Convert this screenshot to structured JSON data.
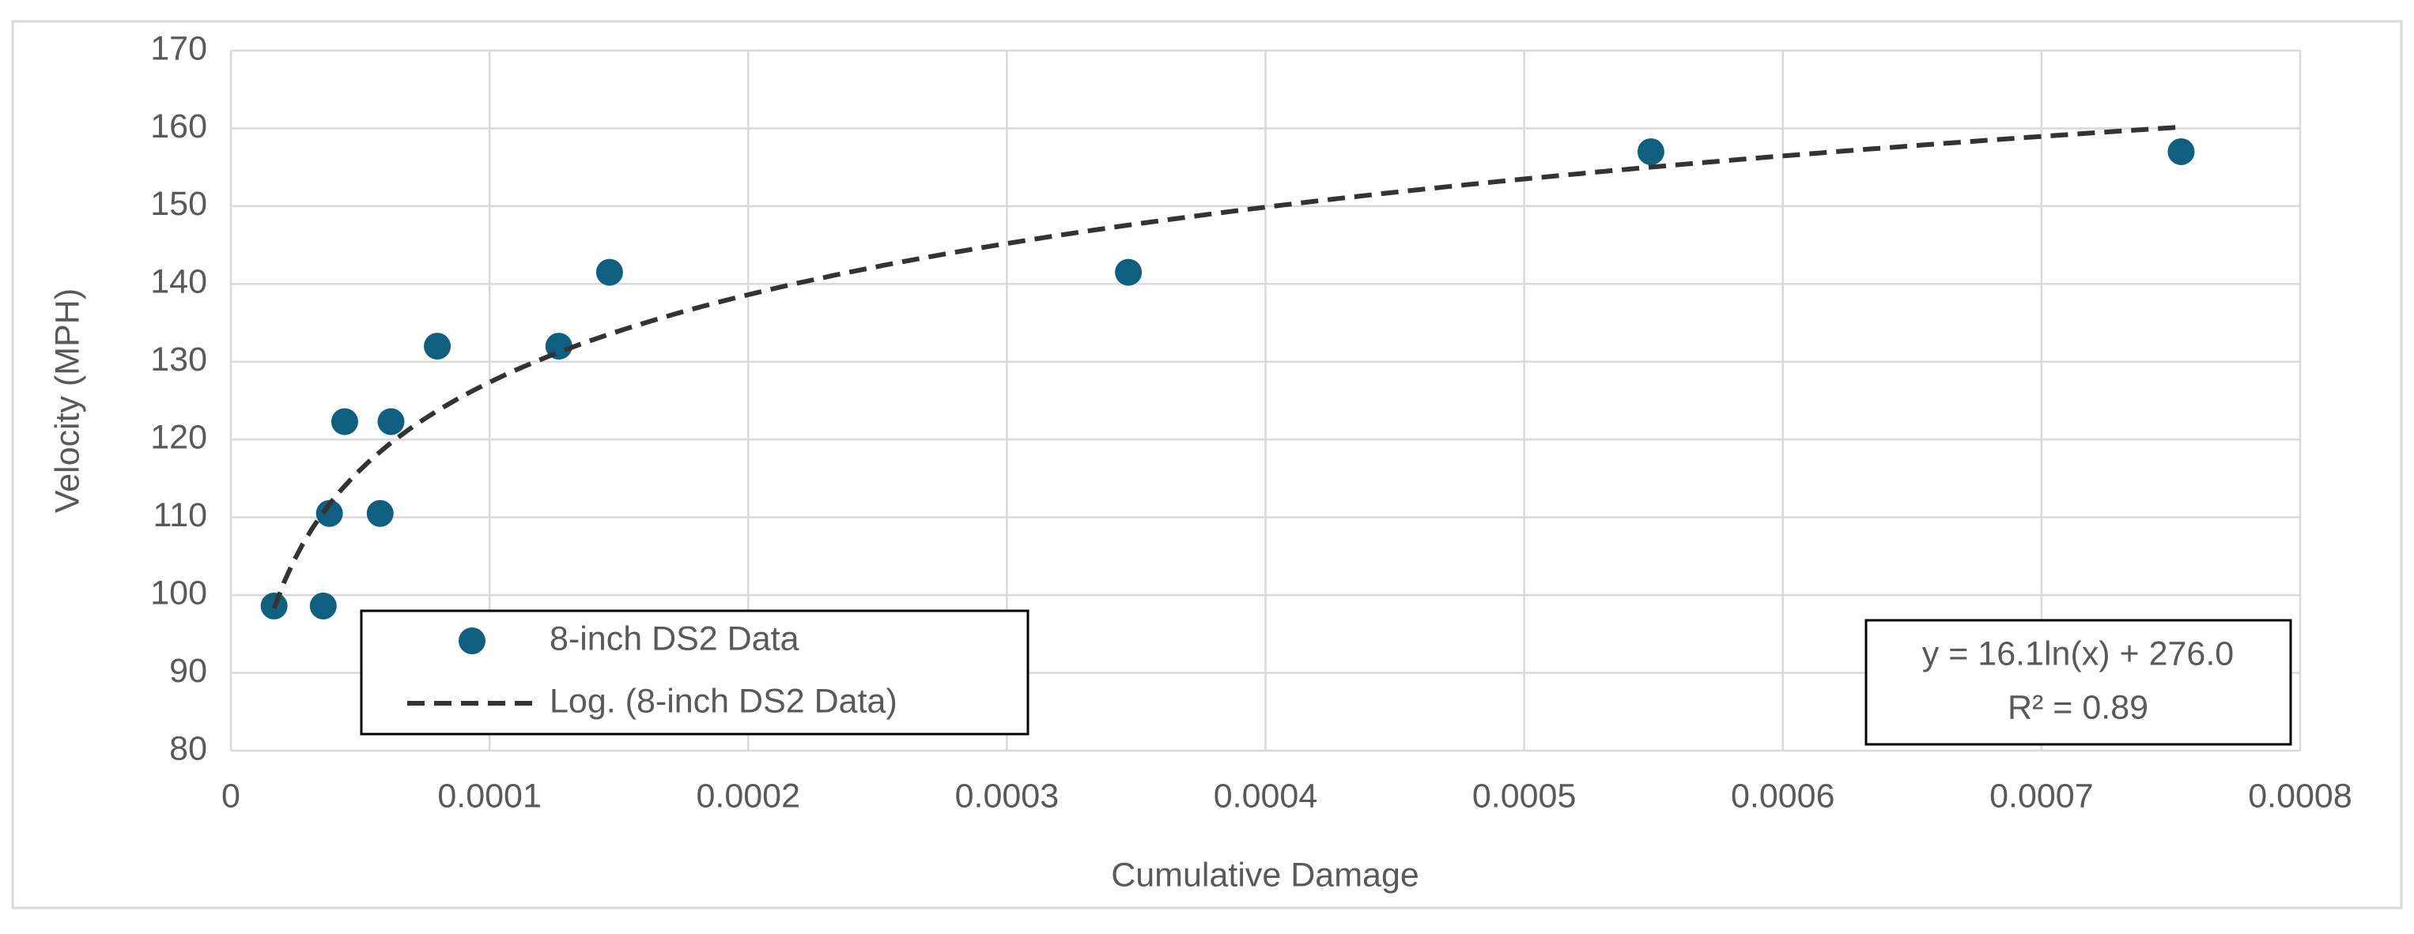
{
  "chart_data": {
    "type": "scatter",
    "xlabel": "Cumulative Damage",
    "ylabel": "Velocity (MPH)",
    "x": [
      1.67e-05,
      3.57e-05,
      3.81e-05,
      4.4e-05,
      5.77e-05,
      6.19e-05,
      7.98e-05,
      0.0001268,
      0.0001464,
      0.000347,
      0.000549,
      0.000754
    ],
    "series": [
      {
        "name": "8-inch DS2 Data",
        "color": "#0f5f80",
        "values": [
          98.6,
          98.6,
          110.5,
          122.3,
          110.5,
          122.3,
          132,
          132,
          141.5,
          141.5,
          157,
          157
        ]
      }
    ],
    "trendline": {
      "name": "Log. (8-inch DS2 Data)",
      "kind": "log",
      "color": "#333333"
    },
    "annotations": [
      "y = 16.1ln(x) + 276.0",
      "R² = 0.89"
    ],
    "xlim": [
      0,
      0.0008
    ],
    "xticks": [
      0,
      0.0001,
      0.0002,
      0.0003,
      0.0004,
      0.0005,
      0.0006,
      0.0007,
      0.0008
    ],
    "ylim": [
      80,
      170
    ],
    "yticks": [
      80,
      90,
      100,
      110,
      120,
      130,
      140,
      150,
      160,
      170
    ],
    "grid": true
  }
}
